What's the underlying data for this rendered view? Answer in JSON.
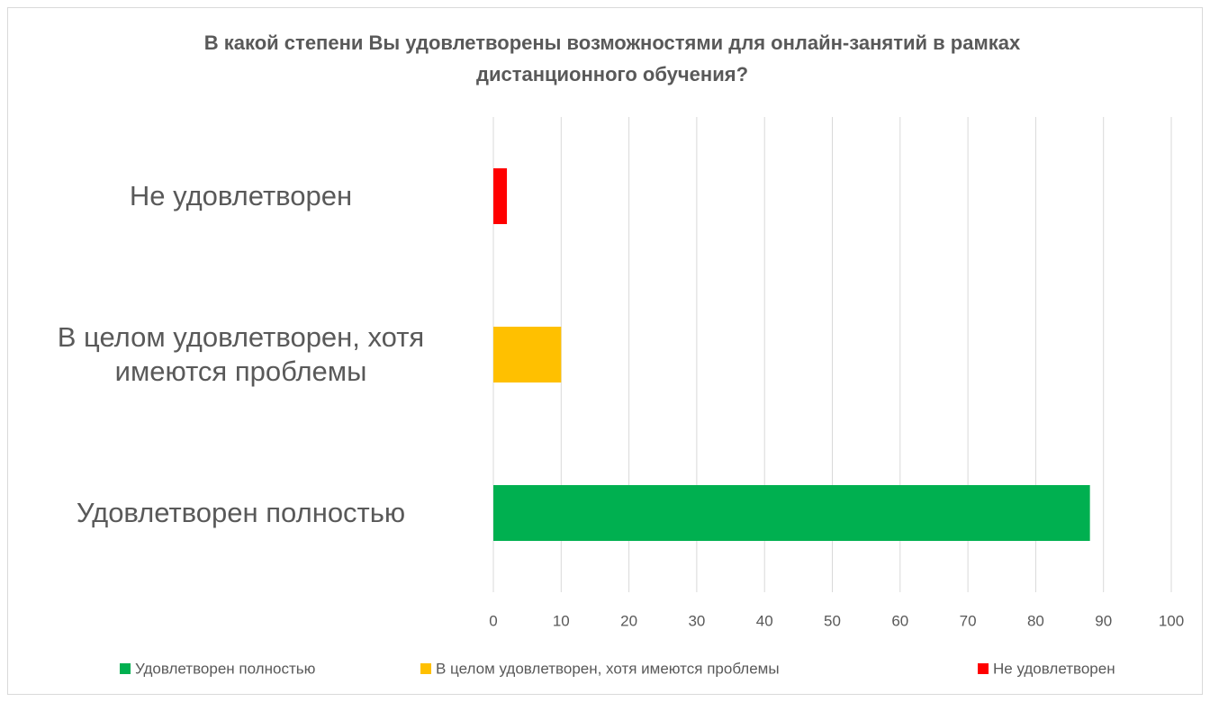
{
  "chart_data": {
    "type": "bar",
    "orientation": "horizontal",
    "title": "В какой степени Вы удовлетворены возможностями для онлайн-занятий в рамках дистанционного обучения?",
    "categories": [
      "Удовлетворен полностью",
      "В целом удовлетворен, хотя имеются проблемы",
      "Не удовлетворен"
    ],
    "values": [
      88,
      10,
      2
    ],
    "colors": [
      "#00b050",
      "#ffc000",
      "#ff0000"
    ],
    "xlim": [
      0,
      100
    ],
    "xticks": [
      0,
      10,
      20,
      30,
      40,
      50,
      60,
      70,
      80,
      90,
      100
    ],
    "grid": true,
    "legend": "bottom"
  }
}
